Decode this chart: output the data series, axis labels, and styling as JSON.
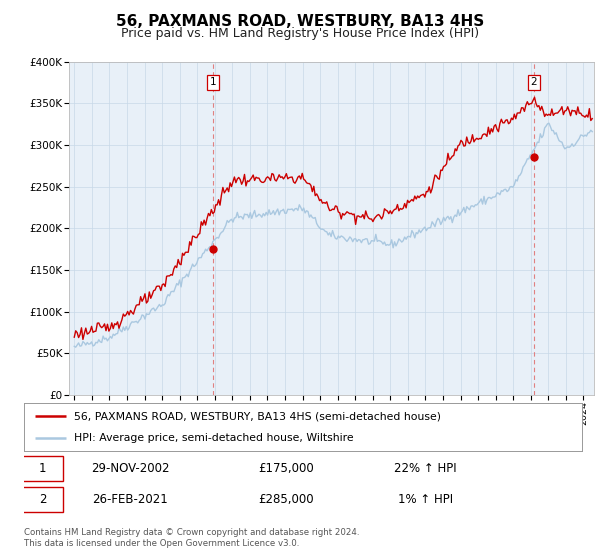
{
  "title": "56, PAXMANS ROAD, WESTBURY, BA13 4HS",
  "subtitle": "Price paid vs. HM Land Registry's House Price Index (HPI)",
  "title_fontsize": 11,
  "subtitle_fontsize": 9,
  "hpi_color": "#aac8e0",
  "price_color": "#cc0000",
  "marker_color": "#cc0000",
  "dashed_line_color": "#e08080",
  "background_color": "#ffffff",
  "grid_color": "#c8d8e8",
  "ylim": [
    0,
    400000
  ],
  "yticks": [
    0,
    50000,
    100000,
    150000,
    200000,
    250000,
    300000,
    350000,
    400000
  ],
  "ytick_labels": [
    "£0",
    "£50K",
    "£100K",
    "£150K",
    "£200K",
    "£250K",
    "£300K",
    "£350K",
    "£400K"
  ],
  "sale1_x": 2002.916,
  "sale1_price": 175000,
  "sale2_x": 2021.166,
  "sale2_price": 285000,
  "legend_line1": "56, PAXMANS ROAD, WESTBURY, BA13 4HS (semi-detached house)",
  "legend_line2": "HPI: Average price, semi-detached house, Wiltshire",
  "table_row1": [
    "1",
    "29-NOV-2002",
    "£175,000",
    "22% ↑ HPI"
  ],
  "table_row2": [
    "2",
    "26-FEB-2021",
    "£285,000",
    "1% ↑ HPI"
  ],
  "footer1": "Contains HM Land Registry data © Crown copyright and database right 2024.",
  "footer2": "This data is licensed under the Open Government Licence v3.0.",
  "xstart": 1994.7,
  "xend": 2024.6
}
